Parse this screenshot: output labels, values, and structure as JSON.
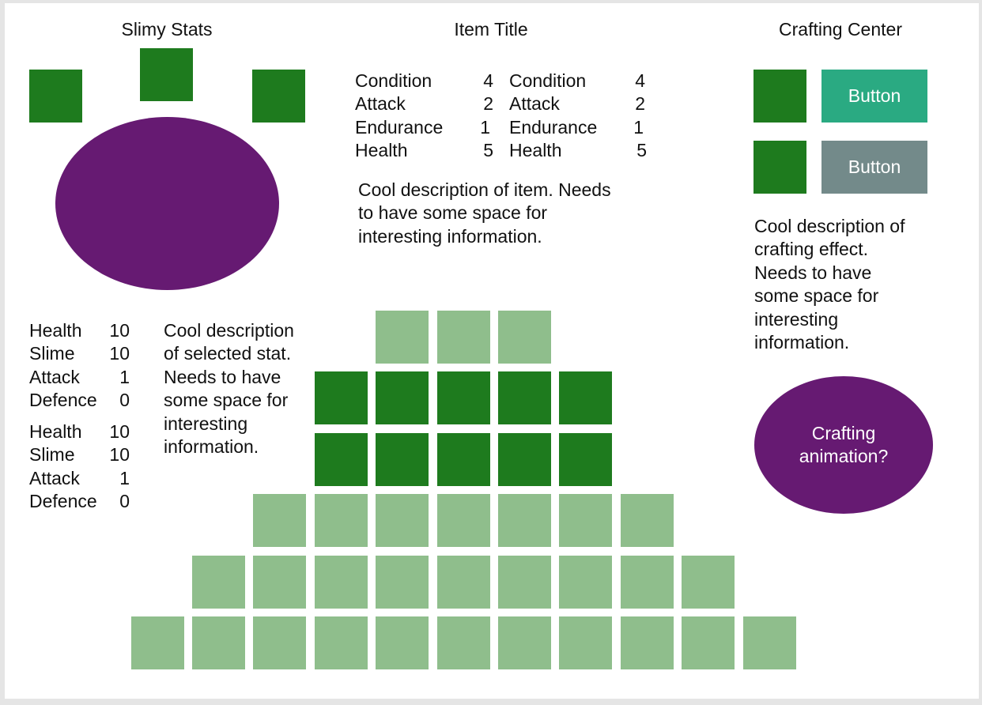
{
  "slimy_stats": {
    "title": "Slimy Stats",
    "stats_a": [
      {
        "label": "Health",
        "value": "10"
      },
      {
        "label": "Slime",
        "value": "10"
      },
      {
        "label": "Attack",
        "value": "1"
      },
      {
        "label": "Defence",
        "value": "0"
      }
    ],
    "stats_b": [
      {
        "label": "Health",
        "value": "10"
      },
      {
        "label": "Slime",
        "value": "10"
      },
      {
        "label": "Attack",
        "value": "1"
      },
      {
        "label": "Defence",
        "value": "0"
      }
    ],
    "description": [
      "Cool description",
      "of selected stat.",
      "Needs to have",
      "some space for",
      "interesting",
      "information."
    ]
  },
  "item": {
    "title": "Item Title",
    "stats_left": [
      {
        "label": "Condition",
        "value": "4"
      },
      {
        "label": "Attack",
        "value": "2"
      },
      {
        "label": "Endurance",
        "value": "1"
      },
      {
        "label": "Health",
        "value": "5"
      }
    ],
    "stats_right": [
      {
        "label": "Condition",
        "value": "4"
      },
      {
        "label": "Attack",
        "value": "2"
      },
      {
        "label": "Endurance",
        "value": "1"
      },
      {
        "label": "Health",
        "value": "5"
      }
    ],
    "description": [
      "Cool description of item. Needs",
      "to have some space for",
      "interesting information."
    ]
  },
  "crafting": {
    "title": "Crafting Center",
    "button_primary": "Button",
    "button_secondary": "Button",
    "description": [
      "Cool description of",
      "crafting effect.",
      "Needs to have",
      "some space for",
      "interesting",
      "information."
    ],
    "animation_label": [
      "Crafting",
      "animation?"
    ]
  },
  "inventory_grid": {
    "rows": [
      {
        "count": 3,
        "state": "light"
      },
      {
        "count": 5,
        "state": "dark"
      },
      {
        "count": 5,
        "state": "dark"
      },
      {
        "count": 7,
        "state": "light"
      },
      {
        "count": 9,
        "state": "light"
      },
      {
        "count": 11,
        "state": "light"
      }
    ]
  },
  "colors": {
    "slot_green": "#1e7b1e",
    "slot_light": "#8fbe8c",
    "slime_purple": "#661a72",
    "button_primary": "#2aaa82",
    "button_secondary": "#738a8a"
  }
}
